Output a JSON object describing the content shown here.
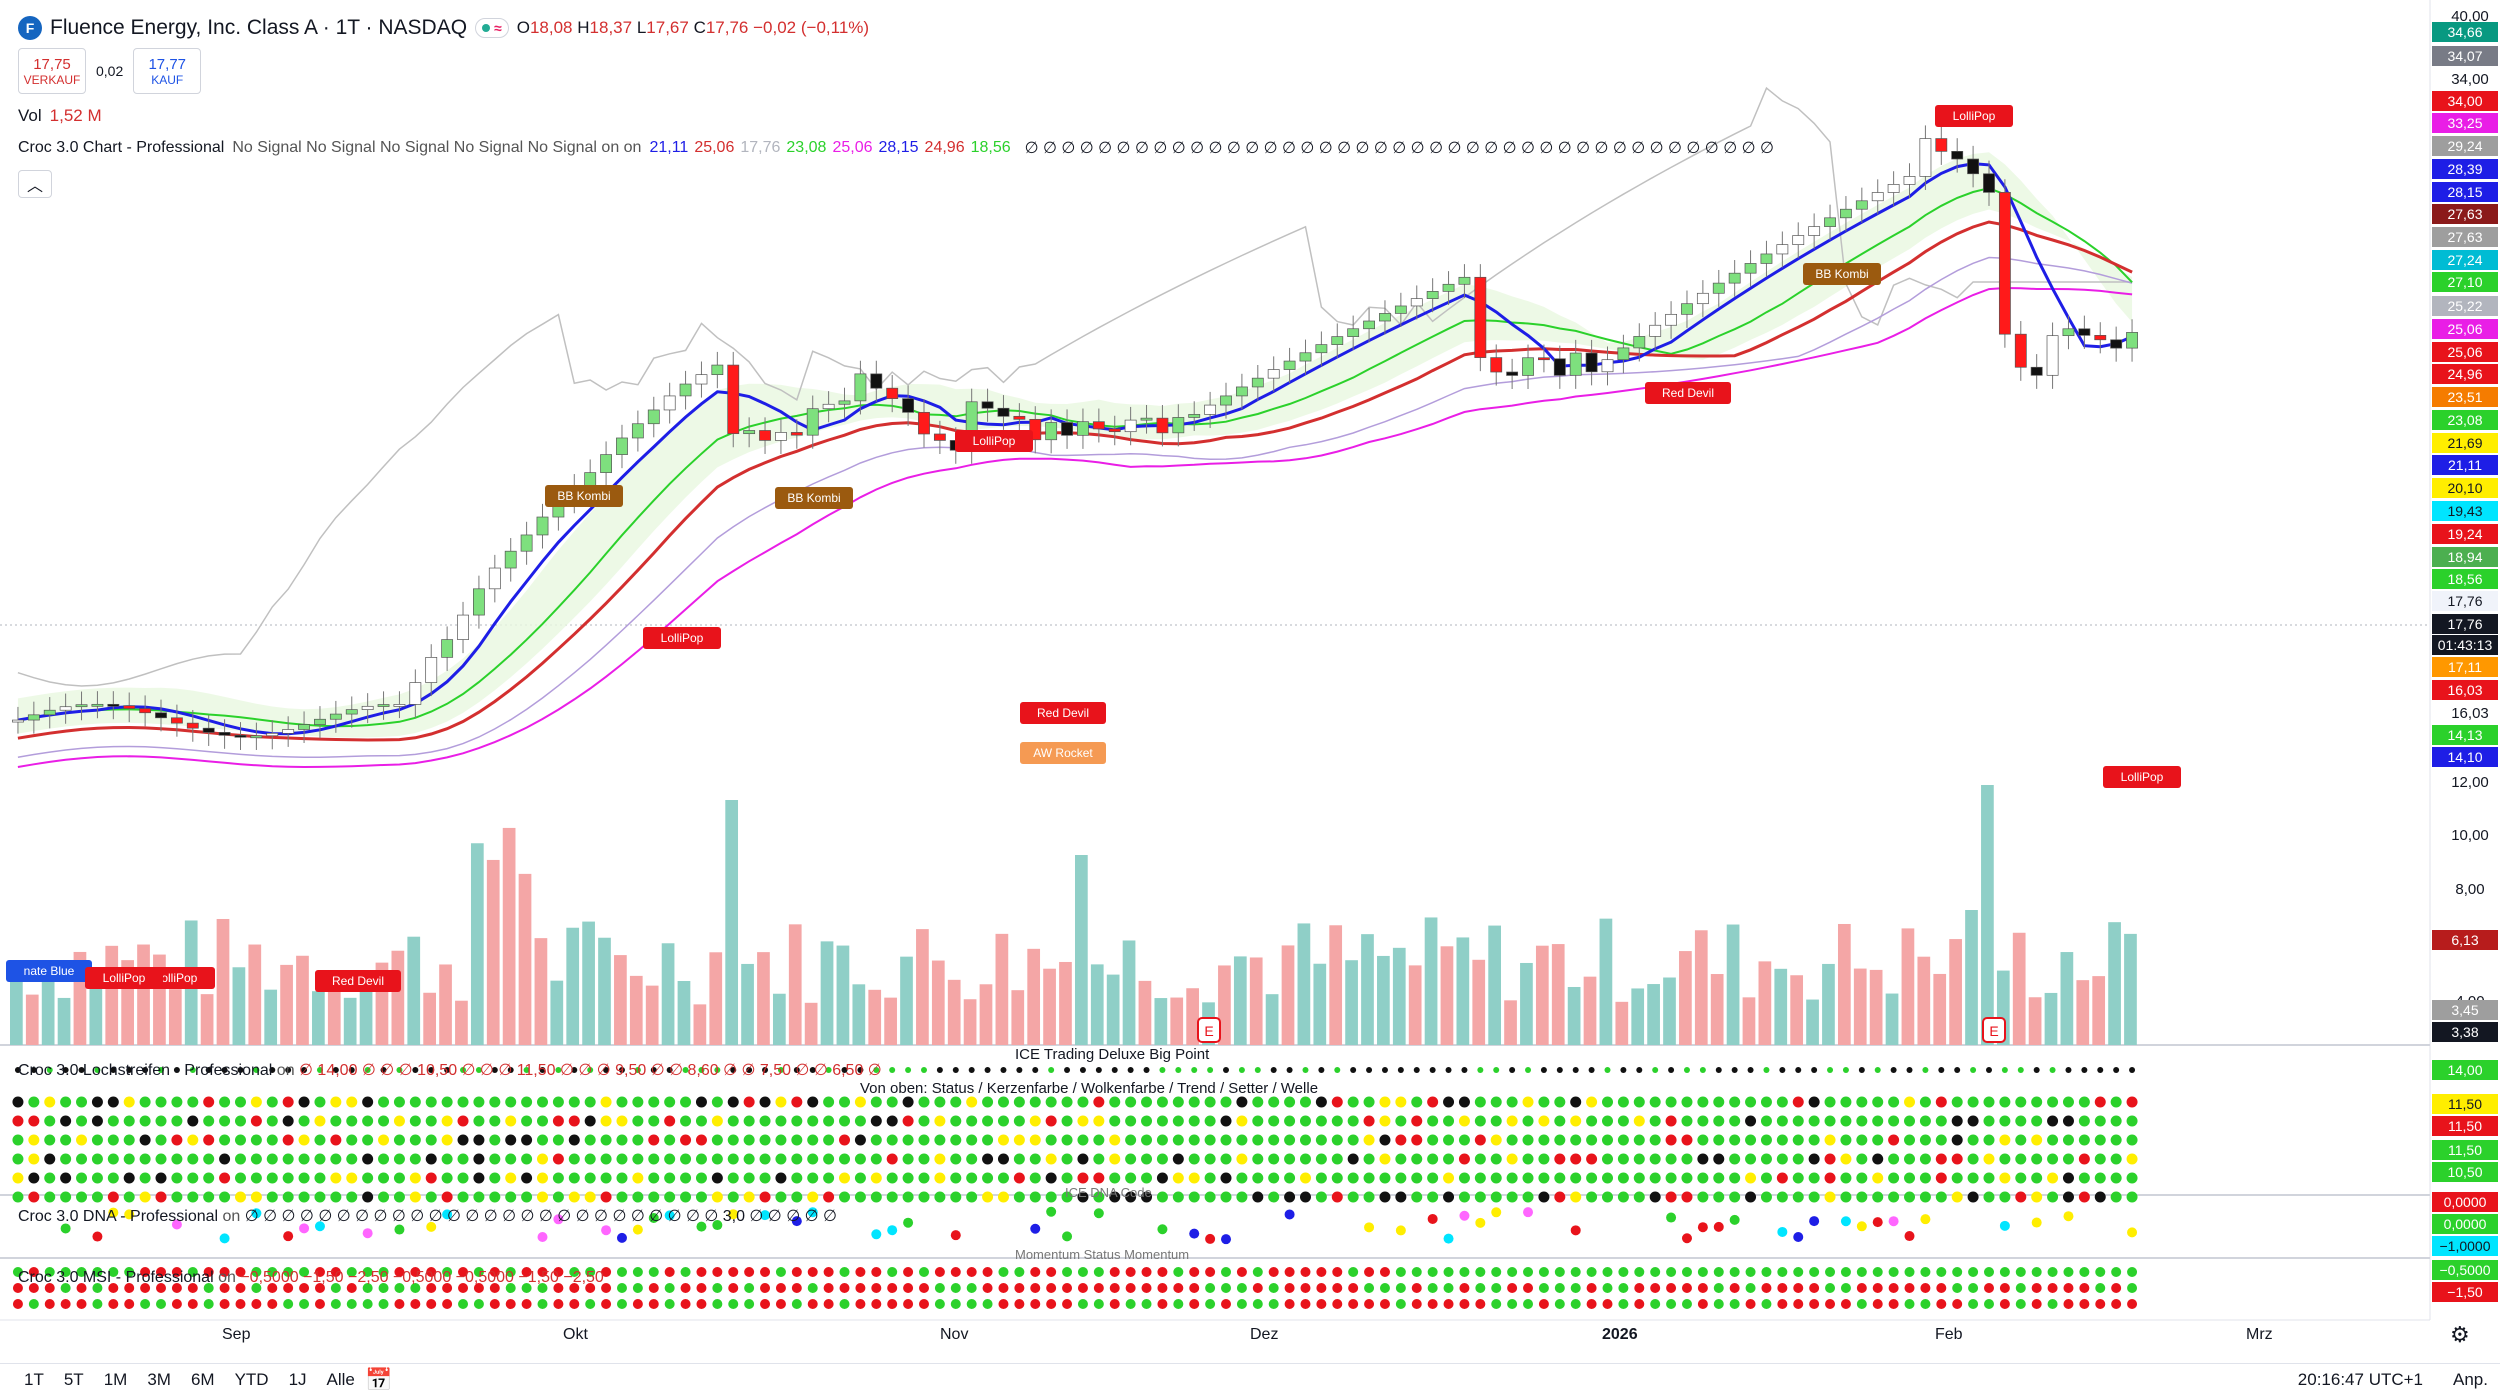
{
  "header": {
    "symbol_title": "Fluence Energy, Inc. Class A · 1T · NASDAQ",
    "logo_letter": "F",
    "status_wave": "≈",
    "ohlc": {
      "o_label": "O",
      "o": "18,08",
      "h_label": "H",
      "h": "18,37",
      "l_label": "L",
      "l": "17,67",
      "c_label": "C",
      "c": "17,76",
      "change": "−0,02 (−0,11%)"
    },
    "sell_price": "17,75",
    "sell_label": "VERKAUF",
    "spread": "0,02",
    "buy_price": "17,77",
    "buy_label": "KAUF",
    "vol_label": "Vol",
    "vol_value": "1,52 M"
  },
  "indicator_chart": {
    "name": "Croc 3.0 Chart - Professional",
    "signals": "No Signal No Signal No Signal No Signal No Signal on on",
    "values": [
      {
        "v": "21,11",
        "color": "#1e1ee6"
      },
      {
        "v": "25,06",
        "color": "#d32f2f"
      },
      {
        "v": "17,76",
        "color": "#b2b5be"
      },
      {
        "v": "23,08",
        "color": "#2bd12b"
      },
      {
        "v": "25,06",
        "color": "#e91ee6"
      },
      {
        "v": "28,15",
        "color": "#1e1ee6"
      },
      {
        "v": "24,96",
        "color": "#d32f2f"
      },
      {
        "v": "18,56",
        "color": "#2bd12b"
      }
    ],
    "empty_glyphs": "∅ ∅ ∅ ∅ ∅ ∅ ∅ ∅ ∅ ∅ ∅ ∅ ∅ ∅ ∅ ∅ ∅ ∅ ∅ ∅ ∅ ∅ ∅ ∅ ∅ ∅ ∅ ∅ ∅ ∅ ∅ ∅ ∅ ∅ ∅ ∅ ∅ ∅ ∅ ∅ ∅"
  },
  "signal_tags": [
    {
      "label": "LolliPop",
      "color": "#e8131b"
    },
    {
      "label": "BB Kombi",
      "color": "#9b5a0f"
    },
    {
      "label": "LolliPop",
      "color": "#e8131b"
    },
    {
      "label": "BB Kombi",
      "color": "#9b5a0f"
    },
    {
      "label": "LolliPop",
      "color": "#e8131b"
    },
    {
      "label": "Red Devil",
      "color": "#e8131b"
    },
    {
      "label": "AW Rocket",
      "color": "#f59a53"
    },
    {
      "label": "Red Devil",
      "color": "#e8131b"
    },
    {
      "label": "BB Kombi",
      "color": "#9b5a0f"
    },
    {
      "label": "LolliPop",
      "color": "#e8131b"
    },
    {
      "label": "LolliPop",
      "color": "#e8131b"
    },
    {
      "label": "nate Blue",
      "color": "#1e53e5"
    },
    {
      "label": "LolliPop",
      "color": "#e8131b"
    },
    {
      "label": "Red Devil",
      "color": "#e8131b"
    }
  ],
  "earnings_marker": "E",
  "price_axis": {
    "ticks": [
      "40,00",
      "34,00",
      "16,03",
      "12,00",
      "10,00",
      "8,00",
      "4,00"
    ],
    "badges": [
      {
        "v": "34,66",
        "bg": "#089981"
      },
      {
        "v": "34,07",
        "bg": "#787b86"
      },
      {
        "v": "34,00",
        "bg": "#e8131b"
      },
      {
        "v": "33,25",
        "bg": "#e91ee6"
      },
      {
        "v": "29,24",
        "bg": "#9e9e9e"
      },
      {
        "v": "28,39",
        "bg": "#1e1ee6"
      },
      {
        "v": "28,15",
        "bg": "#1e1ee6"
      },
      {
        "v": "27,63",
        "bg": "#8b1a1a"
      },
      {
        "v": "27,63",
        "bg": "#9e9e9e"
      },
      {
        "v": "27,24",
        "bg": "#00bcd4"
      },
      {
        "v": "27,10",
        "bg": "#2bd12b"
      },
      {
        "v": "25,22",
        "bg": "#b2b5be"
      },
      {
        "v": "25,06",
        "bg": "#e91ee6"
      },
      {
        "v": "25,06",
        "bg": "#e8131b"
      },
      {
        "v": "24,96",
        "bg": "#e8131b"
      },
      {
        "v": "23,51",
        "bg": "#f57c00"
      },
      {
        "v": "23,08",
        "bg": "#2bd12b"
      },
      {
        "v": "21,69",
        "bg": "#ffee00"
      },
      {
        "v": "21,11",
        "bg": "#1e1ee6"
      },
      {
        "v": "20,10",
        "bg": "#ffee00"
      },
      {
        "v": "19,43",
        "bg": "#00e5ff"
      },
      {
        "v": "19,24",
        "bg": "#e8131b"
      },
      {
        "v": "18,94",
        "bg": "#4caf50"
      },
      {
        "v": "18,56",
        "bg": "#2bd12b"
      },
      {
        "v": "17,76",
        "bg": "#f0f3fa"
      },
      {
        "v": "17,76",
        "bg": "#131722"
      },
      {
        "v": "01:43:13",
        "bg": "#131722"
      },
      {
        "v": "17,11",
        "bg": "#ff9800"
      },
      {
        "v": "16,03",
        "bg": "#e8131b"
      },
      {
        "v": "14,13",
        "bg": "#2bd12b"
      },
      {
        "v": "14,10",
        "bg": "#1e1ee6"
      },
      {
        "v": "6,13",
        "bg": "#b71c1c"
      },
      {
        "v": "3,45",
        "bg": "#9e9e9e"
      },
      {
        "v": "3,38",
        "bg": "#131722"
      }
    ]
  },
  "sub_panels": {
    "lochstreifen": {
      "name": "Croc 3.0 Lochstreifen - Professional",
      "on": "on",
      "values": "∅ 14,00 ∅ ∅ ∅ 10,50 ∅ ∅ ∅ 11,50 ∅ ∅ ∅ 9,50 ∅ ∅ 8,60 ∅ ∅ 7,50 ∅ ∅ 6,50 ∅"
    },
    "ice_title": "ICE Trading Deluxe Big Point",
    "ice_subtitle": "Von oben: Status / Kerzenfarbe / Wolkenfarbe / Trend / Setter / Welle",
    "lochstreifen_badges": [
      {
        "v": "14,00",
        "bg": "#2bd12b"
      },
      {
        "v": "11,50",
        "bg": "#ffee00"
      },
      {
        "v": "11,50",
        "bg": "#e8131b"
      },
      {
        "v": "11,50",
        "bg": "#2bd12b"
      },
      {
        "v": "10,50",
        "bg": "#2bd12b"
      }
    ],
    "dna": {
      "name": "Croc 3.0 DNA - Professional",
      "on": "on",
      "values": "∅ ∅ ∅ ∅ ∅ ∅ ∅ ∅ ∅ ∅ ∅ ∅ ∅ ∅ ∅ ∅ ∅ ∅ ∅ ∅ ∅ ∅ ∅ ∅ ∅ ∅ 3,0 ∅ ∅ ∅ ∅ ∅",
      "code_title": "ICE DNA Code",
      "footer": "Momentum Status Momentum"
    },
    "dna_badges": [
      {
        "v": "0,0000",
        "bg": "#e8131b"
      },
      {
        "v": "0,0000",
        "bg": "#2bd12b"
      },
      {
        "v": "−1,0000",
        "bg": "#00e5ff"
      }
    ],
    "msi": {
      "name": "Croc 3.0 MSI - Professional",
      "on": "on",
      "v1": "−0,5000",
      "v2": "−1,50",
      "v3": "−2,50",
      "v4": "−0,5000",
      "v5": "−0,5000",
      "v6": "−1,50",
      "v7": "−2,50"
    },
    "msi_badges": [
      {
        "v": "−0,5000",
        "bg": "#2bd12b"
      },
      {
        "v": "−1,50",
        "bg": "#e8131b"
      }
    ]
  },
  "time_axis": [
    "Sep",
    "Okt",
    "Nov",
    "Dez",
    "2026",
    "Feb",
    "Mrz"
  ],
  "bottom_bar": {
    "timeframes": [
      "1T",
      "5T",
      "1M",
      "3M",
      "6M",
      "YTD",
      "1J",
      "Alle"
    ],
    "clock": "20:16:47 UTC+1",
    "adjust": "Anp."
  },
  "icons": {
    "calendar": "calendar-range-icon",
    "settings": "gear-icon",
    "collapse": "chevron-up-icon"
  }
}
